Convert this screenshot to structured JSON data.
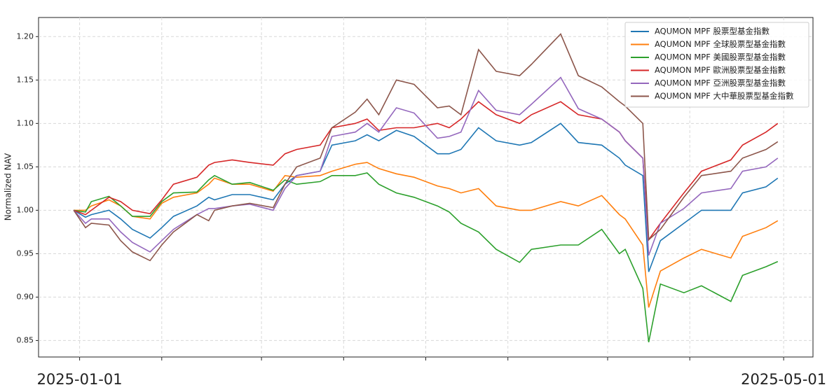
{
  "chart_data": {
    "type": "line",
    "ylabel": "Normalized NAV",
    "x": [
      "2024-12-31",
      "2025-01-02",
      "2025-01-03",
      "2025-01-06",
      "2025-01-08",
      "2025-01-10",
      "2025-01-13",
      "2025-01-15",
      "2025-01-17",
      "2025-01-21",
      "2025-01-23",
      "2025-01-24",
      "2025-01-27",
      "2025-01-30",
      "2025-02-03",
      "2025-02-05",
      "2025-02-07",
      "2025-02-11",
      "2025-02-13",
      "2025-02-17",
      "2025-02-19",
      "2025-02-21",
      "2025-02-24",
      "2025-02-27",
      "2025-03-03",
      "2025-03-05",
      "2025-03-07",
      "2025-03-10",
      "2025-03-13",
      "2025-03-17",
      "2025-03-19",
      "2025-03-24",
      "2025-03-27",
      "2025-03-31",
      "2025-04-03",
      "2025-04-04",
      "2025-04-07",
      "2025-04-08",
      "2025-04-10",
      "2025-04-14",
      "2025-04-17",
      "2025-04-22",
      "2025-04-24",
      "2025-04-28",
      "2025-04-30"
    ],
    "series": [
      {
        "name": "AQUMON MPF 股票型基金指數",
        "color": "#1f77b4",
        "values": [
          1.0,
          0.992,
          0.995,
          1.0,
          0.99,
          0.978,
          0.968,
          0.98,
          0.993,
          1.005,
          1.015,
          1.012,
          1.018,
          1.018,
          1.012,
          1.03,
          1.04,
          1.045,
          1.075,
          1.08,
          1.087,
          1.08,
          1.092,
          1.085,
          1.065,
          1.065,
          1.07,
          1.095,
          1.08,
          1.075,
          1.078,
          1.1,
          1.078,
          1.075,
          1.06,
          1.052,
          1.04,
          0.929,
          0.965,
          0.985,
          1.0,
          1.0,
          1.02,
          1.027,
          1.037
        ]
      },
      {
        "name": "AQUMON MPF 全球股票型基金指數",
        "color": "#ff7f0e",
        "values": [
          1.0,
          1.0,
          1.005,
          1.012,
          1.005,
          0.993,
          0.99,
          1.008,
          1.015,
          1.02,
          1.03,
          1.037,
          1.03,
          1.03,
          1.022,
          1.04,
          1.038,
          1.04,
          1.045,
          1.053,
          1.055,
          1.048,
          1.042,
          1.038,
          1.028,
          1.025,
          1.02,
          1.025,
          1.005,
          1.0,
          1.0,
          1.01,
          1.005,
          1.017,
          0.995,
          0.99,
          0.96,
          0.888,
          0.93,
          0.945,
          0.955,
          0.945,
          0.97,
          0.98,
          0.988
        ]
      },
      {
        "name": "AQUMON MPF 美國股票型基金指數",
        "color": "#2ca02c",
        "values": [
          1.0,
          0.998,
          1.01,
          1.016,
          1.005,
          0.993,
          0.993,
          1.01,
          1.02,
          1.021,
          1.035,
          1.04,
          1.03,
          1.032,
          1.023,
          1.035,
          1.03,
          1.033,
          1.04,
          1.04,
          1.043,
          1.03,
          1.02,
          1.015,
          1.005,
          0.998,
          0.985,
          0.975,
          0.955,
          0.94,
          0.955,
          0.96,
          0.96,
          0.978,
          0.95,
          0.955,
          0.91,
          0.848,
          0.915,
          0.905,
          0.913,
          0.895,
          0.925,
          0.935,
          0.941
        ]
      },
      {
        "name": "AQUMON MPF 歐洲股票型基金指數",
        "color": "#d62728",
        "values": [
          1.0,
          0.995,
          1.0,
          1.015,
          1.01,
          1.0,
          0.996,
          1.012,
          1.03,
          1.038,
          1.052,
          1.055,
          1.058,
          1.055,
          1.052,
          1.065,
          1.07,
          1.075,
          1.095,
          1.1,
          1.105,
          1.092,
          1.095,
          1.095,
          1.1,
          1.095,
          1.105,
          1.125,
          1.11,
          1.1,
          1.11,
          1.125,
          1.11,
          1.105,
          1.09,
          1.08,
          1.06,
          0.966,
          0.985,
          1.02,
          1.045,
          1.058,
          1.075,
          1.09,
          1.1
        ]
      },
      {
        "name": "AQUMON MPF 亞洲股票型基金指數",
        "color": "#9467bd",
        "values": [
          1.0,
          0.985,
          0.99,
          0.99,
          0.975,
          0.963,
          0.952,
          0.965,
          0.978,
          0.995,
          1.002,
          1.002,
          1.005,
          1.007,
          1.0,
          1.025,
          1.04,
          1.045,
          1.085,
          1.09,
          1.1,
          1.09,
          1.118,
          1.112,
          1.083,
          1.085,
          1.09,
          1.138,
          1.115,
          1.11,
          1.122,
          1.153,
          1.117,
          1.105,
          1.09,
          1.08,
          1.06,
          0.948,
          0.985,
          1.002,
          1.02,
          1.025,
          1.045,
          1.05,
          1.06
        ]
      },
      {
        "name": "AQUMON MPF 大中華股票型基金指數",
        "color": "#8c564b",
        "values": [
          1.0,
          0.98,
          0.985,
          0.983,
          0.965,
          0.952,
          0.942,
          0.96,
          0.975,
          0.995,
          0.988,
          1.0,
          1.005,
          1.008,
          1.003,
          1.03,
          1.05,
          1.06,
          1.095,
          1.113,
          1.128,
          1.11,
          1.15,
          1.145,
          1.118,
          1.12,
          1.11,
          1.185,
          1.16,
          1.155,
          1.168,
          1.203,
          1.155,
          1.142,
          1.125,
          1.12,
          1.1,
          0.966,
          0.978,
          1.015,
          1.04,
          1.045,
          1.06,
          1.07,
          1.079
        ]
      }
    ],
    "xlim": [
      "2024-12-25",
      "2025-05-06"
    ],
    "xticks": [
      {
        "value": "2025-01-01",
        "label": "2025-01-01"
      },
      {
        "value": "2025-01-15",
        "label": null
      },
      {
        "value": "2025-02-01",
        "label": null
      },
      {
        "value": "2025-02-15",
        "label": null
      },
      {
        "value": "2025-03-01",
        "label": null
      },
      {
        "value": "2025-03-15",
        "label": null
      },
      {
        "value": "2025-04-01",
        "label": null
      },
      {
        "value": "2025-04-15",
        "label": null
      },
      {
        "value": "2025-05-01",
        "label": "2025-05-01"
      }
    ],
    "ylim": [
      0.831,
      1.222
    ],
    "yticks": [
      0.85,
      {
        "value": 0.9,
        "label": "0.90"
      },
      0.95,
      {
        "value": 1.0,
        "label": "1.00"
      },
      1.05,
      {
        "value": 1.1,
        "label": "1.10"
      },
      1.15,
      {
        "value": 1.2,
        "label": "1.20"
      }
    ],
    "grid": true,
    "legend": "upper right"
  }
}
